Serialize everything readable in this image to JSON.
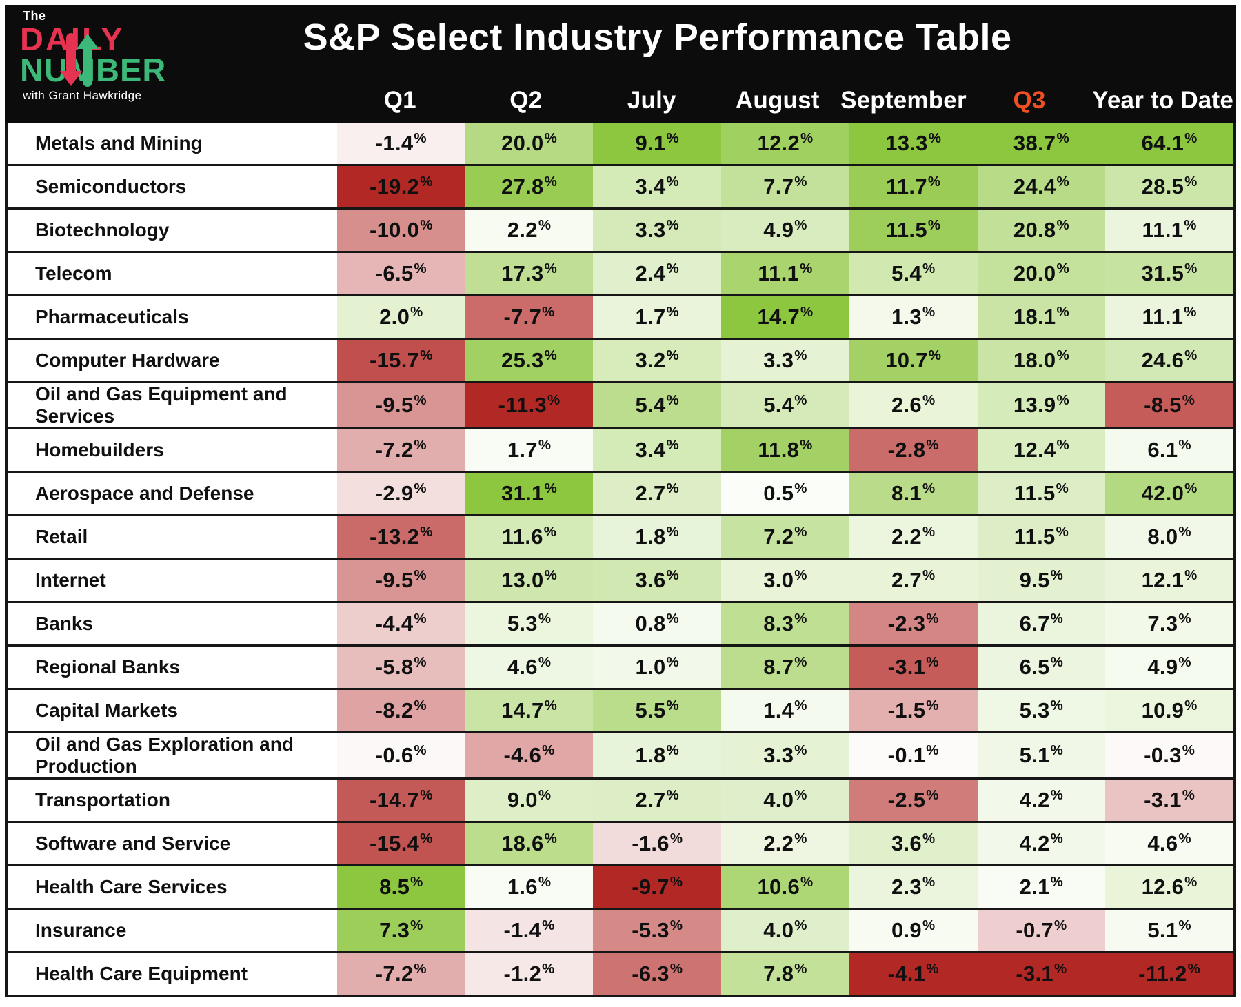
{
  "header": {
    "logo": {
      "the": "The",
      "daily": "DAILY",
      "number": "NUMBER",
      "tagline": "with Grant Hawkridge",
      "daily_color": "#e73352",
      "number_color": "#3cb878"
    },
    "title": "S&P Select Industry Performance Table",
    "background": "#0c0c0c",
    "q3_color": "#ef4f22"
  },
  "chart_data": {
    "type": "heatmap",
    "title": "S&P Select Industry Performance Table",
    "columns": [
      "Q1",
      "Q2",
      "July",
      "August",
      "September",
      "Q3",
      "Year to Date"
    ],
    "unit": "%",
    "rows": [
      {
        "label": "Metals and Mining",
        "values": [
          -1.4,
          20.0,
          9.1,
          12.2,
          13.3,
          38.7,
          64.1
        ]
      },
      {
        "label": "Semiconductors",
        "values": [
          -19.2,
          27.8,
          3.4,
          7.7,
          11.7,
          24.4,
          28.5
        ]
      },
      {
        "label": "Biotechnology",
        "values": [
          -10.0,
          2.2,
          3.3,
          4.9,
          11.5,
          20.8,
          11.1
        ]
      },
      {
        "label": "Telecom",
        "values": [
          -6.5,
          17.3,
          2.4,
          11.1,
          5.4,
          20.0,
          31.5
        ]
      },
      {
        "label": "Pharmaceuticals",
        "values": [
          2.0,
          -7.7,
          1.7,
          14.7,
          1.3,
          18.1,
          11.1
        ]
      },
      {
        "label": "Computer Hardware",
        "values": [
          -15.7,
          25.3,
          3.2,
          3.3,
          10.7,
          18.0,
          24.6
        ]
      },
      {
        "label": "Oil and Gas Equipment and Services",
        "values": [
          -9.5,
          -11.3,
          5.4,
          5.4,
          2.6,
          13.9,
          -8.5
        ]
      },
      {
        "label": "Homebuilders",
        "values": [
          -7.2,
          1.7,
          3.4,
          11.8,
          -2.8,
          12.4,
          6.1
        ]
      },
      {
        "label": "Aerospace and Defense",
        "values": [
          -2.9,
          31.1,
          2.7,
          0.5,
          8.1,
          11.5,
          42.0
        ]
      },
      {
        "label": "Retail",
        "values": [
          -13.2,
          11.6,
          1.8,
          7.2,
          2.2,
          11.5,
          8.0
        ]
      },
      {
        "label": "Internet",
        "values": [
          -9.5,
          13.0,
          3.6,
          3.0,
          2.7,
          9.5,
          12.1
        ]
      },
      {
        "label": "Banks",
        "values": [
          -4.4,
          5.3,
          0.8,
          8.3,
          -2.3,
          6.7,
          7.3
        ]
      },
      {
        "label": "Regional Banks",
        "values": [
          -5.8,
          4.6,
          1.0,
          8.7,
          -3.1,
          6.5,
          4.9
        ]
      },
      {
        "label": "Capital Markets",
        "values": [
          -8.2,
          14.7,
          5.5,
          1.4,
          -1.5,
          5.3,
          10.9
        ]
      },
      {
        "label": "Oil and Gas Exploration and Production",
        "values": [
          -0.6,
          -4.6,
          1.8,
          3.3,
          -0.1,
          5.1,
          -0.3
        ]
      },
      {
        "label": "Transportation",
        "values": [
          -14.7,
          9.0,
          2.7,
          4.0,
          -2.5,
          4.2,
          -3.1
        ]
      },
      {
        "label": "Software and Service",
        "values": [
          -15.4,
          18.6,
          -1.6,
          2.2,
          3.6,
          4.2,
          4.6
        ]
      },
      {
        "label": "Health Care Services",
        "values": [
          8.5,
          1.6,
          -9.7,
          10.6,
          2.3,
          2.1,
          12.6
        ]
      },
      {
        "label": "Insurance",
        "values": [
          7.3,
          -1.4,
          -5.3,
          4.0,
          0.9,
          -0.7,
          5.1
        ]
      },
      {
        "label": "Health Care Equipment",
        "values": [
          -7.2,
          -1.2,
          -6.3,
          7.8,
          -4.1,
          -3.1,
          -11.2
        ]
      }
    ],
    "color_scale": {
      "negative_color": "#b22825",
      "neutral_color": "#ffffff",
      "positive_color": "#8dc63f",
      "midpoint": 0,
      "scaling": "per-column min/max"
    }
  }
}
